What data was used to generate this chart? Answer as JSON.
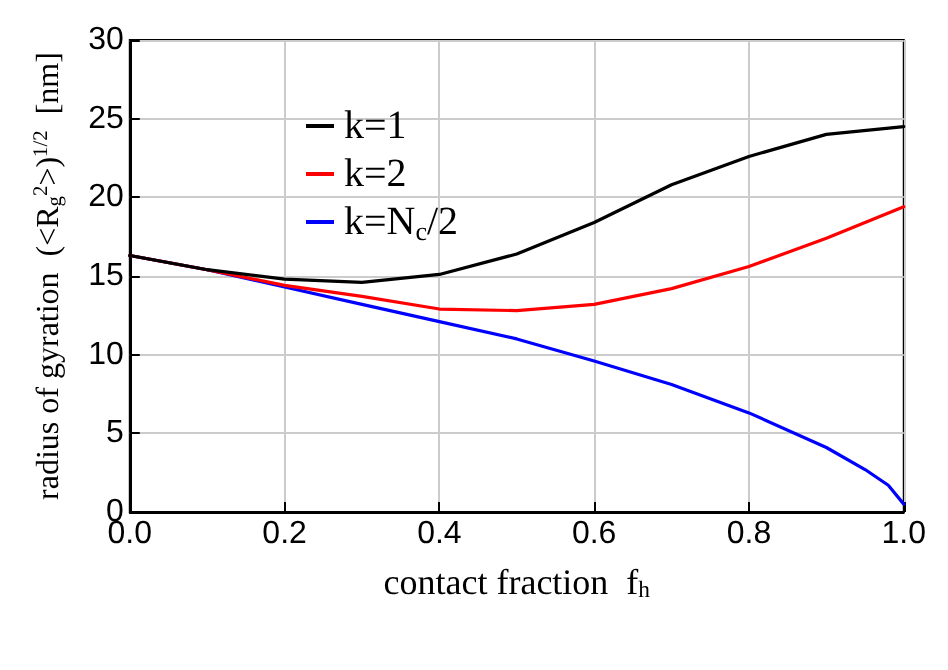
{
  "chart_data": {
    "type": "line",
    "xlabel": "contact fraction  f$_{h}$",
    "ylabel": "radius of gyration  (<R$_{g}$$^{2}$>)$^{1/2}$  [nm]",
    "xlim": [
      0,
      1
    ],
    "xticks": [
      {
        "value": 0,
        "label": "0.0"
      },
      0.2,
      0.4,
      0.6,
      0.8,
      {
        "value": 1,
        "label": "1.0"
      }
    ],
    "ylim": [
      0,
      30
    ],
    "yticks": [
      0,
      5,
      10,
      15,
      20,
      25,
      30
    ],
    "grid": true,
    "legend": "top",
    "marker": "none",
    "line_style": "solid",
    "series": [
      {
        "name": "k=1",
        "color": "#000000",
        "x": [
          0,
          0.1,
          0.2,
          0.3,
          0.4,
          0.5,
          0.6,
          0.7,
          0.8,
          0.9,
          1.0
        ],
        "values": [
          16.3,
          15.4,
          14.8,
          14.6,
          15.1,
          16.4,
          18.4,
          20.8,
          22.6,
          24.0,
          24.5
        ]
      },
      {
        "name": "k=2",
        "color": "#ff0000",
        "x": [
          0,
          0.1,
          0.2,
          0.3,
          0.4,
          0.5,
          0.6,
          0.7,
          0.8,
          0.9,
          1.0
        ],
        "values": [
          16.3,
          15.4,
          14.4,
          13.7,
          12.9,
          12.8,
          13.2,
          14.2,
          15.6,
          17.4,
          19.4
        ]
      },
      {
        "name": "k=N$_{c}$/2",
        "color": "#0000ff",
        "x": [
          0,
          0.1,
          0.2,
          0.3,
          0.4,
          0.5,
          0.6,
          0.7,
          0.8,
          0.9,
          0.95,
          0.98,
          1.0
        ],
        "values": [
          16.3,
          15.4,
          14.3,
          13.2,
          12.1,
          11.0,
          9.6,
          8.1,
          6.3,
          4.1,
          2.7,
          1.7,
          0.5
        ]
      }
    ]
  }
}
